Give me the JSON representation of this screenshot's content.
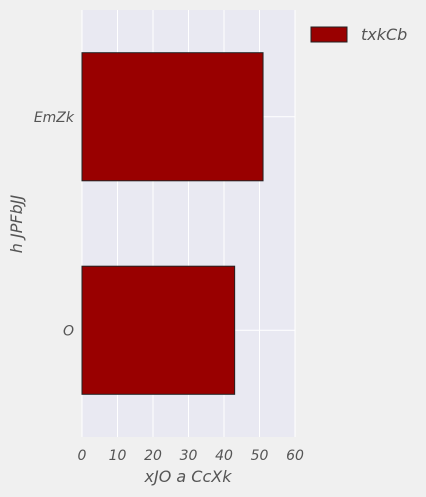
{
  "chart_data": {
    "type": "bar",
    "orientation": "horizontal",
    "categories": [
      "EmZk",
      "O"
    ],
    "series": [
      {
        "name": "txkCb",
        "values": [
          51,
          43
        ],
        "color": "#990000"
      }
    ],
    "xlabel": "xJO  a  CcXk",
    "ylabel": "h JPFbJJ",
    "xlim": [
      0,
      60
    ],
    "xticks": [
      "0",
      "10",
      "20",
      "30",
      "40",
      "50",
      "60"
    ],
    "grid": true,
    "legend_position": "top-right",
    "colors": {
      "background": "#f0f0f0",
      "plot_background": "#e9e9f2",
      "grid": "#ffffff",
      "bar_edge": "#222222"
    }
  }
}
